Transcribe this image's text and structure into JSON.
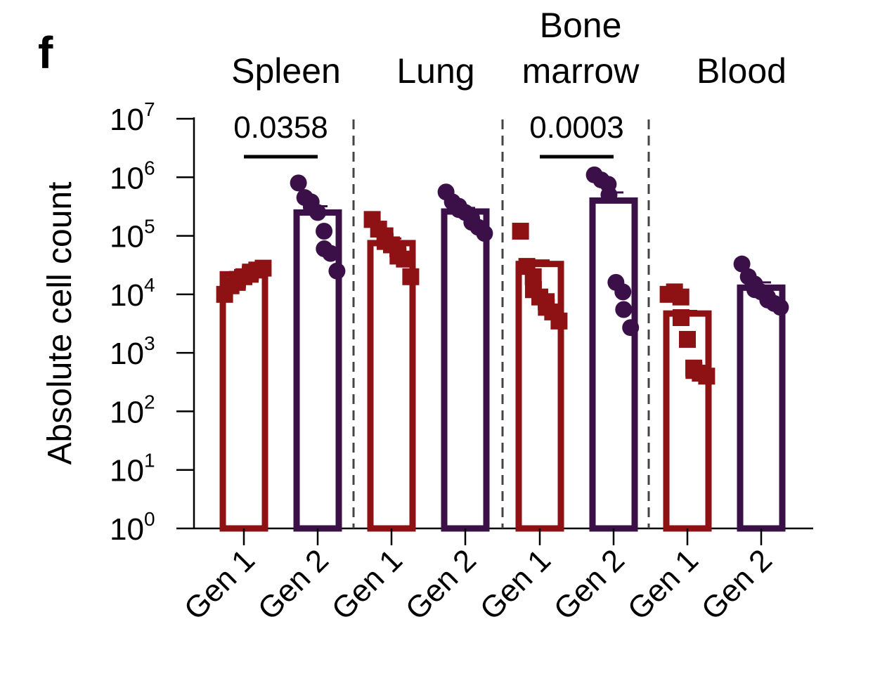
{
  "panel_label": "f",
  "chart_data": {
    "type": "bar",
    "y_scale": "log",
    "ylabel": "Absolute cell count",
    "ylim": [
      1,
      10000000
    ],
    "y_tick_base": "10",
    "y_tick_exponents": [
      "0",
      "1",
      "2",
      "3",
      "4",
      "5",
      "6",
      "7"
    ],
    "colors": {
      "Gen 1": "#8e1113",
      "Gen 2": "#3b1048"
    },
    "groups": [
      {
        "name": "Spleen",
        "name_lines": [
          "Spleen"
        ],
        "categories": [
          {
            "label": "Gen 1",
            "mean": 22000,
            "sem_upper": 26000,
            "points": [
              10000,
              14000,
              16000,
              18000,
              20000,
              22000,
              24000,
              26000,
              28000
            ]
          },
          {
            "label": "Gen 2",
            "mean": 250000,
            "sem_upper": 320000,
            "points": [
              800000,
              450000,
              380000,
              310000,
              250000,
              120000,
              60000,
              50000,
              25000
            ]
          }
        ],
        "comparison": {
          "label": "0.0358"
        }
      },
      {
        "name": "Lung",
        "name_lines": [
          "Lung"
        ],
        "categories": [
          {
            "label": "Gen 1",
            "mean": 75000,
            "sem_upper": 90000,
            "points": [
              190000,
              130000,
              100000,
              80000,
              70000,
              60000,
              45000,
              40000,
              20000
            ]
          },
          {
            "label": "Gen 2",
            "mean": 260000,
            "sem_upper": 300000,
            "points": [
              560000,
              380000,
              320000,
              280000,
              250000,
              200000,
              170000,
              140000,
              110000
            ]
          }
        ]
      },
      {
        "name": "Bone marrow",
        "name_lines": [
          "Bone",
          "marrow"
        ],
        "categories": [
          {
            "label": "Gen 1",
            "mean": 33000,
            "sem_upper": 38000,
            "points": [
              120000,
              30000,
              20000,
              12000,
              9000,
              7500,
              6000,
              5000,
              3500
            ]
          },
          {
            "label": "Gen 2",
            "mean": 400000,
            "sem_upper": 550000,
            "points": [
              1100000,
              900000,
              760000,
              500000,
              16000,
              11000,
              5500,
              2700
            ]
          }
        ],
        "comparison": {
          "label": "0.0003"
        }
      },
      {
        "name": "Blood",
        "name_lines": [
          "Blood"
        ],
        "categories": [
          {
            "label": "Gen 1",
            "mean": 4700,
            "sem_upper": 5200,
            "points": [
              10000,
              11000,
              9000,
              4000,
              1700,
              550,
              500,
              450,
              400
            ]
          },
          {
            "label": "Gen 2",
            "mean": 13000,
            "sem_upper": 16000,
            "points": [
              33000,
              20000,
              15000,
              12000,
              11000,
              9000,
              8000,
              7000,
              6000
            ]
          }
        ]
      }
    ]
  }
}
